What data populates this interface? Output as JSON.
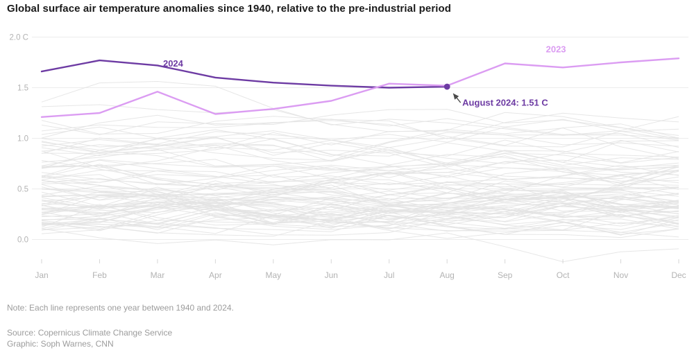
{
  "title": "Global surface air temperature anomalies since 1940, relative to the pre-industrial period",
  "footer": {
    "note": "Note: Each line represents one year between 1940 and 2024.",
    "source": "Source: Copernicus Climate Change Service",
    "graphic": "Graphic: Soph Warnes, CNN"
  },
  "colors": {
    "series_2024": "#6d3ba3",
    "series_2023": "#db9cf2",
    "background_lines": "#e3e3e3",
    "grid": "#ececec",
    "axis_text": "#b3b3b3",
    "tick": "#d6d6d6",
    "title_text": "#1a1a1a",
    "footer_text": "#9c9c9c",
    "arrow": "#4a4a4a"
  },
  "chart_data": {
    "type": "line",
    "x": [
      "Jan",
      "Feb",
      "Mar",
      "Apr",
      "May",
      "Jun",
      "Jul",
      "Aug",
      "Sep",
      "Oct",
      "Nov",
      "Dec"
    ],
    "yticks": [
      {
        "value": 2.0,
        "label": "2.0 C"
      },
      {
        "value": 1.5,
        "label": "1.5"
      },
      {
        "value": 1.0,
        "label": "1.0"
      },
      {
        "value": 0.5,
        "label": "0.5"
      },
      {
        "value": 0.0,
        "label": "0.0"
      }
    ],
    "ylim": [
      -0.25,
      2.0
    ],
    "unit": "C",
    "grid": "horizontal",
    "legend": "inline-labels",
    "series": [
      {
        "name": "2024",
        "color": "#6d3ba3",
        "values": [
          1.66,
          1.77,
          1.72,
          1.6,
          1.55,
          1.52,
          1.5,
          1.51
        ],
        "label_at": {
          "month": 2.27,
          "value": 1.71
        }
      },
      {
        "name": "2023",
        "color": "#db9cf2",
        "values": [
          1.21,
          1.25,
          1.46,
          1.24,
          1.29,
          1.37,
          1.54,
          1.52,
          1.74,
          1.7,
          1.75,
          1.79
        ],
        "label_at": {
          "month": 8.88,
          "value": 1.85
        }
      }
    ],
    "annotation": {
      "text": "August 2024: 1.51 C",
      "month_index": 7,
      "value": 1.51
    },
    "background": {
      "description": "One light gray line per year, 1940-2022",
      "start_year": 1940,
      "end_year": 2022,
      "color": "#e3e3e3",
      "trend_anchors": [
        [
          1940,
          0.3
        ],
        [
          1945,
          0.28
        ],
        [
          1950,
          0.2
        ],
        [
          1955,
          0.22
        ],
        [
          1960,
          0.28
        ],
        [
          1965,
          0.22
        ],
        [
          1970,
          0.3
        ],
        [
          1975,
          0.3
        ],
        [
          1980,
          0.42
        ],
        [
          1985,
          0.42
        ],
        [
          1990,
          0.55
        ],
        [
          1995,
          0.58
        ],
        [
          2000,
          0.68
        ],
        [
          2005,
          0.8
        ],
        [
          2010,
          0.92
        ],
        [
          2015,
          1.02
        ],
        [
          2020,
          1.1
        ],
        [
          2022,
          1.1
        ]
      ],
      "special_years": {
        "1950": [
          -0.05,
          -0.08,
          -0.1,
          -0.08,
          -0.05,
          -0.08,
          -0.1,
          -0.08,
          -0.12,
          -0.55,
          -0.18,
          -0.1
        ],
        "2016": [
          0.42,
          0.5,
          0.48,
          0.34,
          0.22,
          0.12,
          0.06,
          0.05,
          0.08,
          0.12,
          0.16,
          0.2
        ],
        "2020": [
          0.3,
          0.34,
          0.3,
          0.24,
          0.18,
          0.12,
          0.08,
          0.06,
          0.05,
          0.08,
          0.1,
          0.06
        ]
      }
    }
  }
}
